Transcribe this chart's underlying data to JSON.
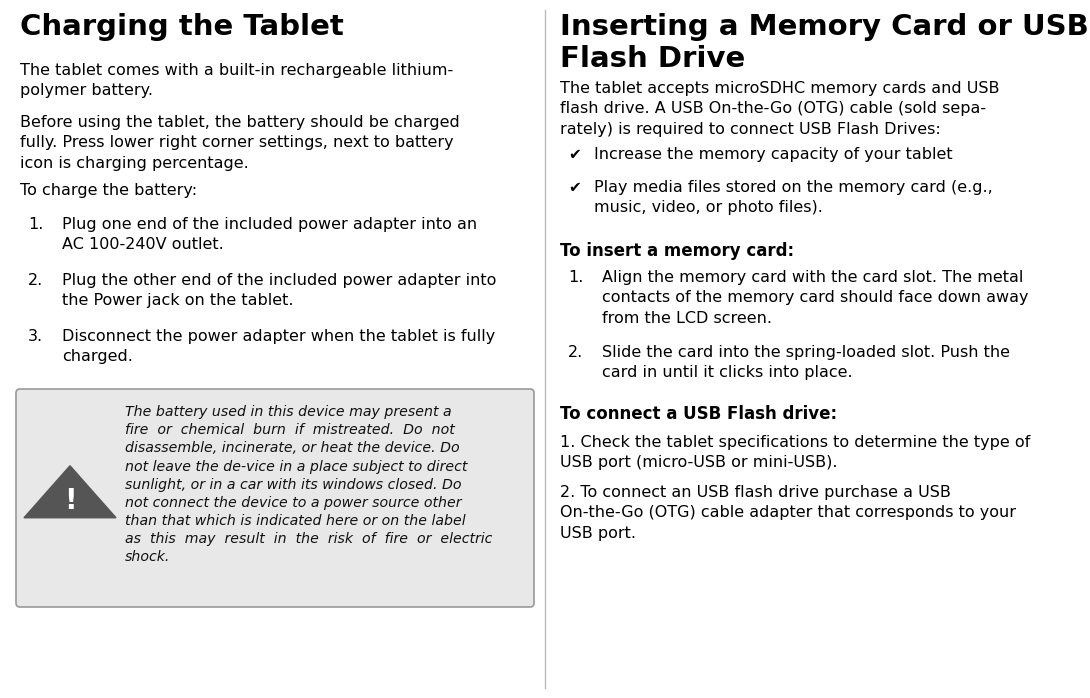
{
  "bg_color": "#ffffff",
  "left_col": {
    "title": "Charging the Tablet",
    "para1": "The tablet comes with a built-in rechargeable lithium-\npolymer battery.",
    "para2": "Before using the tablet, the battery should be charged\nfully. Press lower right corner settings, next to battery\nicon is charging percentage.",
    "para3": "To charge the battery:",
    "items": [
      {
        "num": "1.",
        "text": "Plug one end of the included power adapter into an\nAC 100-240V outlet."
      },
      {
        "num": "2.",
        "text": "Plug the other end of the included power adapter into\nthe Power jack on the tablet."
      },
      {
        "num": "3.",
        "text": "Disconnect the power adapter when the tablet is fully\ncharged."
      }
    ],
    "warning_text": "The battery used in this device may present a\nfire  or  chemical  burn  if  mistreated.  Do  not\ndisassemble, incinerate, or heat the device. Do\nnot leave the de-vice in a place subject to direct\nsunlight, or in a car with its windows closed. Do\nnot connect the device to a power source other\nthan that which is indicated here or on the label\nas  this  may  result  in  the  risk  of  fire  or  electric\nshock."
  },
  "right_col": {
    "title": "Inserting a Memory Card or USB\nFlash Drive",
    "para1": "The tablet accepts microSDHC memory cards and USB\nflash drive. A USB On-the-Go (OTG) cable (sold sepa-\nrately) is required to connect USB Flash Drives:",
    "bullets": [
      "Increase the memory capacity of your tablet",
      "Play media files stored on the memory card (e.g.,\nmusic, video, or photo files)."
    ],
    "subheader1": "To insert a memory card:",
    "items1": [
      {
        "num": "1.",
        "text": "Align the memory card with the card slot. The metal\ncontacts of the memory card should face down away\nfrom the LCD screen."
      },
      {
        "num": "2.",
        "text": "Slide the card into the spring-loaded slot. Push the\ncard in until it clicks into place."
      }
    ],
    "subheader2": "To connect a USB Flash drive:",
    "para2": "1. Check the tablet specifications to determine the type of\nUSB port (micro-USB or mini-USB).",
    "para3": "2. To connect an USB flash drive purchase a USB\nOn-the-Go (OTG) cable adapter that corresponds to your\nUSB port."
  }
}
